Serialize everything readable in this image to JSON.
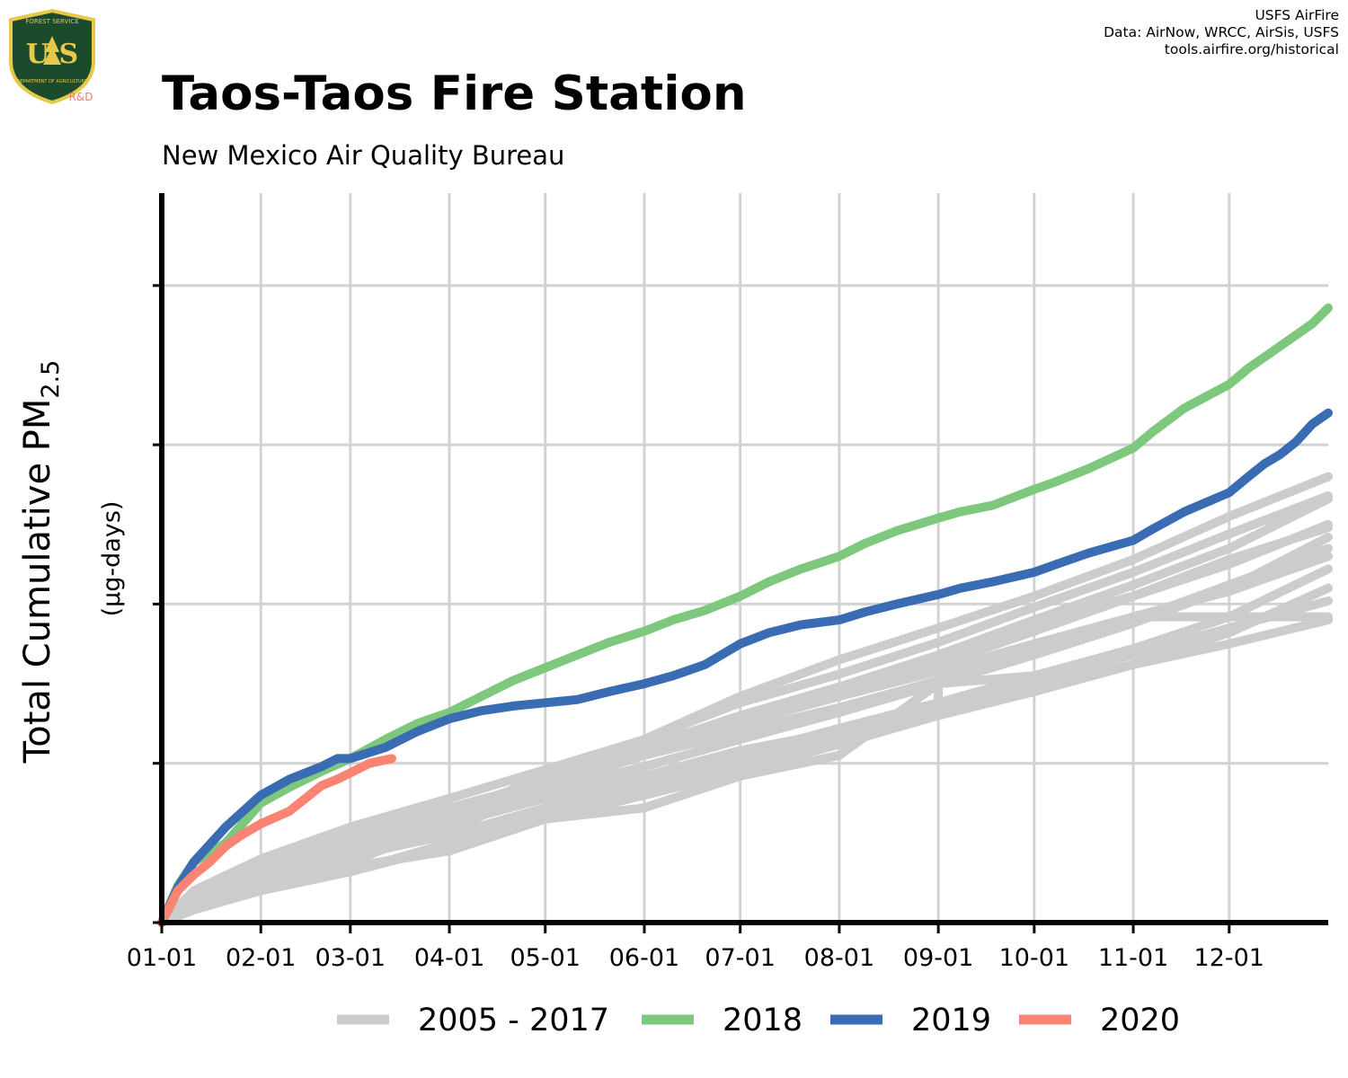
{
  "logo": {
    "shield_text": "U S",
    "top_text": "FOREST SERVICE",
    "bottom_text": "DEPARTMENT OF AGRICULTURE",
    "tag": "R&D",
    "colors": {
      "shield": "#1c4a2c",
      "border": "#e6c94a",
      "tag": "#f07b6b"
    }
  },
  "credits": [
    "USFS AirFire",
    "Data: AirNow, WRCC, AirSis, USFS",
    "tools.airfire.org/historical"
  ],
  "title": "Taos-Taos Fire Station",
  "subtitle": "New Mexico Air Quality Bureau",
  "chart_data": {
    "type": "line",
    "ylabel_main": "Total Cumulative PM",
    "ylabel_sub": "2.5",
    "ylabel_units": "(µg-days)",
    "x_tick_labels": [
      "01-01",
      "02-01",
      "03-01",
      "04-01",
      "05-01",
      "06-01",
      "07-01",
      "08-01",
      "09-01",
      "10-01",
      "11-01",
      "12-01"
    ],
    "x_tick_days": [
      0,
      31,
      59,
      90,
      120,
      151,
      181,
      212,
      243,
      273,
      304,
      334
    ],
    "xlim": [
      0,
      365
    ],
    "ylim": [
      0,
      4.58
    ],
    "y_ticks": [
      0,
      1,
      2,
      3,
      4
    ],
    "y_tick_labels_shown": false,
    "grid": true,
    "legend_position": "bottom",
    "colors": {
      "historical": "#cccccc",
      "2018": "#7dc87c",
      "2019": "#3a6cb3",
      "2020": "#f98473",
      "grid": "#d2d2d2"
    },
    "legend": [
      "2005 - 2017",
      "2018",
      "2019",
      "2020"
    ],
    "series": [
      {
        "name": "2018",
        "x": [
          0,
          5,
          10,
          20,
          31,
          40,
          50,
          59,
          70,
          80,
          90,
          100,
          110,
          120,
          130,
          140,
          151,
          160,
          170,
          181,
          190,
          200,
          212,
          220,
          230,
          243,
          250,
          260,
          273,
          280,
          290,
          304,
          310,
          320,
          334,
          340,
          350,
          360,
          365
        ],
        "y": [
          0.0,
          0.23,
          0.38,
          0.5,
          0.75,
          0.85,
          0.95,
          1.03,
          1.15,
          1.25,
          1.32,
          1.42,
          1.52,
          1.6,
          1.68,
          1.76,
          1.83,
          1.9,
          1.96,
          2.05,
          2.14,
          2.22,
          2.3,
          2.38,
          2.46,
          2.54,
          2.58,
          2.62,
          2.72,
          2.77,
          2.85,
          2.98,
          3.08,
          3.23,
          3.38,
          3.48,
          3.62,
          3.76,
          3.86
        ]
      },
      {
        "name": "2019",
        "x": [
          0,
          5,
          10,
          20,
          31,
          40,
          50,
          55,
          59,
          70,
          80,
          90,
          100,
          110,
          120,
          130,
          140,
          151,
          160,
          170,
          181,
          190,
          200,
          212,
          220,
          230,
          243,
          250,
          260,
          273,
          280,
          290,
          304,
          310,
          320,
          334,
          340,
          345,
          350,
          355,
          360,
          365
        ],
        "y": [
          0.0,
          0.22,
          0.38,
          0.6,
          0.8,
          0.9,
          0.98,
          1.03,
          1.03,
          1.1,
          1.2,
          1.28,
          1.33,
          1.36,
          1.38,
          1.4,
          1.45,
          1.5,
          1.55,
          1.62,
          1.75,
          1.82,
          1.87,
          1.9,
          1.95,
          2.0,
          2.06,
          2.1,
          2.14,
          2.2,
          2.25,
          2.32,
          2.4,
          2.47,
          2.58,
          2.7,
          2.8,
          2.88,
          2.94,
          3.02,
          3.13,
          3.2
        ]
      },
      {
        "name": "2020",
        "x": [
          0,
          5,
          10,
          15,
          20,
          25,
          31,
          40,
          45,
          50,
          55,
          60,
          65,
          72
        ],
        "y": [
          0.0,
          0.2,
          0.3,
          0.38,
          0.48,
          0.55,
          0.62,
          0.7,
          0.78,
          0.86,
          0.9,
          0.95,
          1.0,
          1.03
        ]
      }
    ],
    "historical": [
      {
        "x": [
          0,
          10,
          31,
          59,
          90,
          120,
          151,
          181,
          212,
          243,
          273,
          304,
          334,
          365
        ],
        "y": [
          0,
          0.18,
          0.35,
          0.52,
          0.7,
          0.9,
          1.08,
          1.27,
          1.45,
          1.62,
          1.83,
          2.05,
          2.28,
          2.48
        ]
      },
      {
        "x": [
          0,
          10,
          31,
          59,
          90,
          120,
          151,
          181,
          212,
          243,
          273,
          304,
          334,
          365
        ],
        "y": [
          0,
          0.2,
          0.4,
          0.6,
          0.78,
          0.96,
          1.15,
          1.38,
          1.56,
          1.76,
          1.98,
          2.2,
          2.44,
          2.68
        ]
      },
      {
        "x": [
          0,
          10,
          31,
          59,
          90,
          120,
          151,
          181,
          212,
          243,
          273,
          304,
          334,
          365
        ],
        "y": [
          0,
          0.15,
          0.3,
          0.45,
          0.62,
          0.85,
          1.05,
          1.25,
          1.42,
          1.58,
          1.75,
          1.92,
          2.08,
          2.3
        ]
      },
      {
        "x": [
          0,
          10,
          31,
          59,
          90,
          120,
          151,
          181,
          212,
          243,
          273,
          304,
          334,
          365
        ],
        "y": [
          0,
          0.12,
          0.25,
          0.4,
          0.58,
          0.85,
          1.15,
          1.42,
          1.65,
          1.85,
          2.05,
          2.28,
          2.55,
          2.8
        ]
      },
      {
        "x": [
          0,
          10,
          31,
          59,
          90,
          120,
          151,
          181,
          212,
          243,
          273,
          304,
          334,
          365
        ],
        "y": [
          0,
          0.14,
          0.3,
          0.48,
          0.68,
          0.88,
          1.1,
          1.3,
          1.48,
          1.68,
          1.9,
          2.12,
          2.35,
          2.66
        ]
      },
      {
        "x": [
          0,
          10,
          31,
          59,
          90,
          120,
          151,
          181,
          212,
          243,
          273,
          304,
          334,
          365
        ],
        "y": [
          0,
          0.16,
          0.33,
          0.5,
          0.65,
          0.82,
          0.98,
          1.15,
          1.32,
          1.5,
          1.68,
          1.88,
          2.1,
          2.42
        ]
      },
      {
        "x": [
          0,
          10,
          31,
          59,
          90,
          120,
          151,
          181,
          212,
          243,
          273,
          304,
          334,
          365
        ],
        "y": [
          0,
          0.1,
          0.22,
          0.38,
          0.62,
          0.95,
          1.12,
          1.28,
          1.45,
          1.65,
          1.88,
          2.05,
          2.25,
          2.5
        ]
      },
      {
        "x": [
          0,
          10,
          31,
          59,
          90,
          120,
          151,
          181,
          212,
          243,
          273,
          304,
          334,
          365
        ],
        "y": [
          0,
          0.18,
          0.36,
          0.55,
          0.72,
          0.88,
          1.05,
          1.2,
          1.35,
          1.52,
          1.7,
          1.9,
          2.12,
          2.35
        ]
      },
      {
        "x": [
          0,
          10,
          31,
          59,
          90,
          120,
          151,
          181,
          212,
          243,
          273,
          304,
          334,
          365
        ],
        "y": [
          0,
          0.08,
          0.2,
          0.32,
          0.48,
          0.65,
          0.8,
          0.95,
          1.12,
          1.3,
          1.45,
          1.62,
          1.82,
          2.1
        ]
      },
      {
        "x": [
          0,
          10,
          31,
          59,
          90,
          120,
          151,
          181,
          212,
          243,
          273,
          304,
          334,
          365
        ],
        "y": [
          0,
          0.1,
          0.25,
          0.35,
          0.45,
          0.65,
          0.72,
          0.92,
          1.05,
          1.5,
          1.55,
          1.72,
          1.92,
          2.22
        ]
      },
      {
        "x": [
          0,
          10,
          31,
          59,
          90,
          120,
          151,
          181,
          212,
          243,
          273,
          304,
          334,
          365
        ],
        "y": [
          0,
          0.12,
          0.28,
          0.42,
          0.55,
          0.72,
          0.88,
          1.05,
          1.22,
          1.38,
          1.55,
          1.68,
          1.85,
          2.02
        ]
      },
      {
        "x": [
          0,
          10,
          31,
          59,
          90,
          120,
          151,
          181,
          212,
          243,
          273,
          304,
          334,
          365
        ],
        "y": [
          0,
          0.1,
          0.22,
          0.32,
          0.5,
          0.68,
          0.82,
          1.0,
          1.18,
          1.35,
          1.5,
          1.62,
          1.75,
          1.9
        ]
      },
      {
        "x": [
          0,
          10,
          31,
          59,
          90,
          120,
          151,
          181,
          212,
          243,
          243,
          273,
          304,
          334,
          335,
          365
        ],
        "y": [
          0,
          0.15,
          0.3,
          0.45,
          0.62,
          0.78,
          0.92,
          1.08,
          1.2,
          1.35,
          1.5,
          1.72,
          1.92,
          1.92,
          1.92,
          1.92
        ]
      }
    ]
  }
}
